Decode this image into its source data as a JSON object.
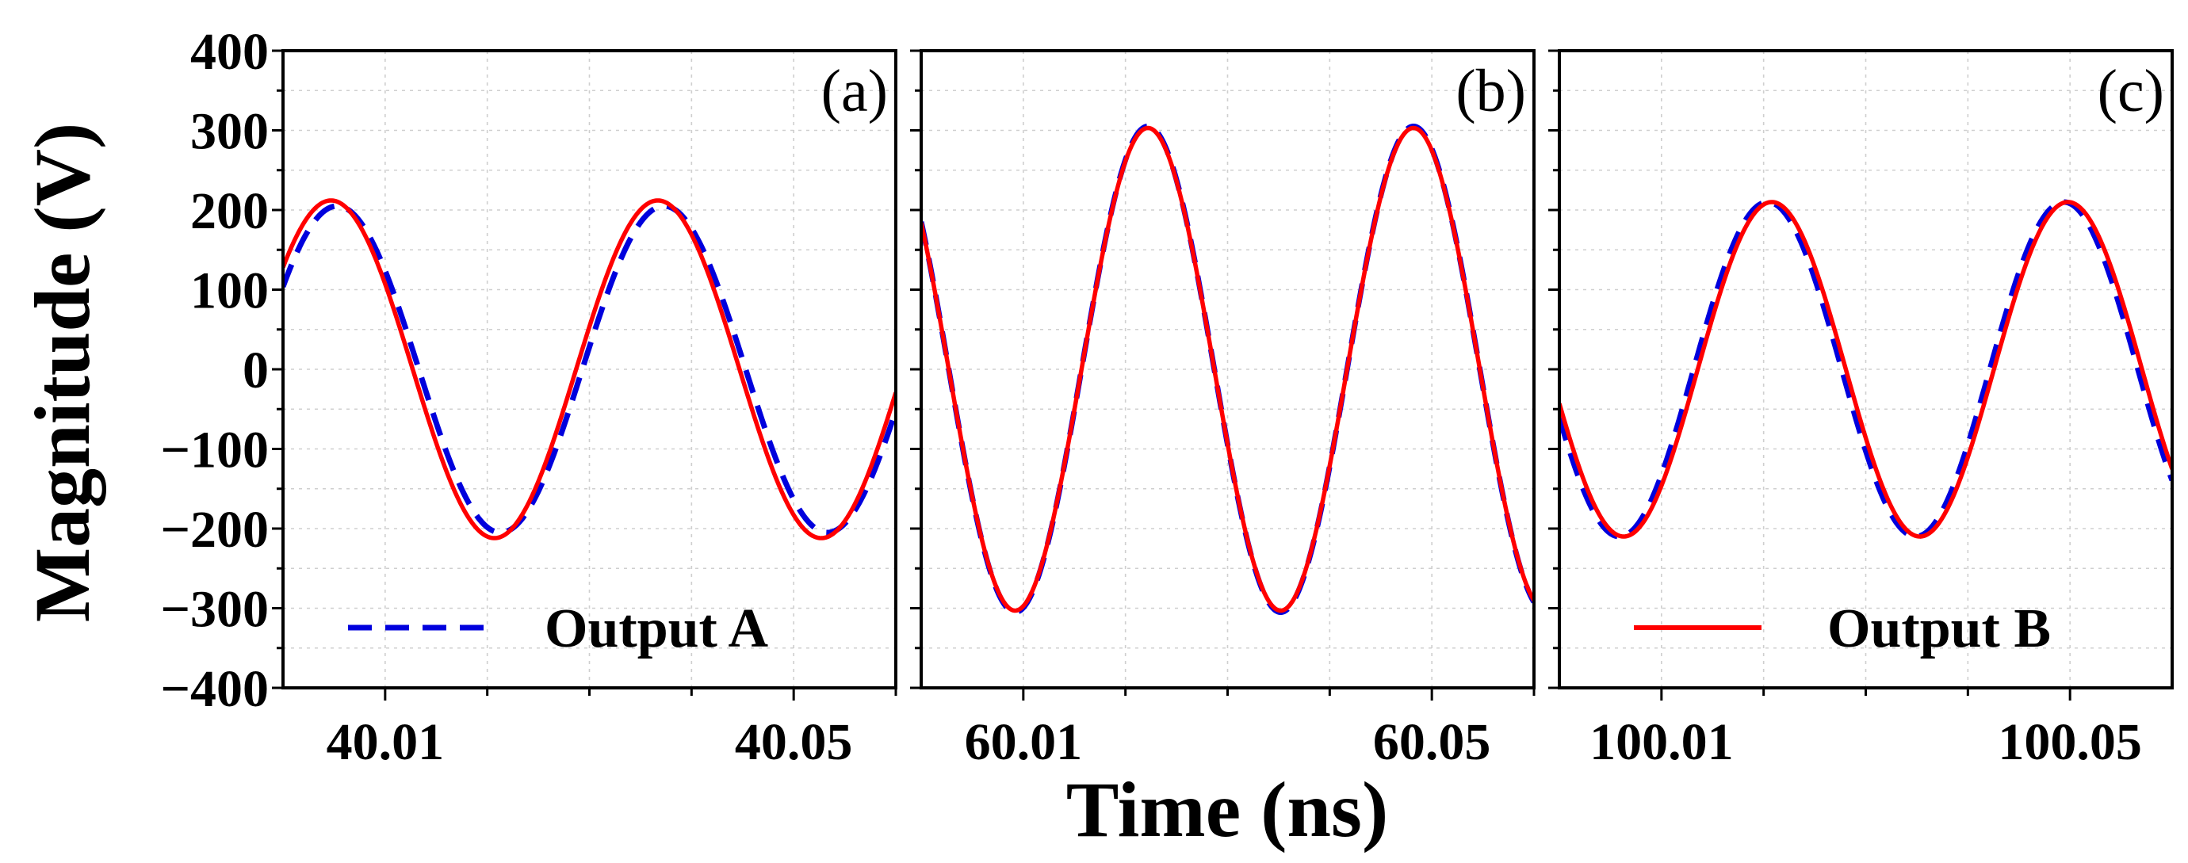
{
  "chart_data": {
    "type": "line",
    "ylabel": "Magnitude (V)",
    "xlabel": "Time (ns)",
    "ylim": [
      -400,
      400
    ],
    "yticks": [
      400,
      300,
      200,
      100,
      0,
      -100,
      -200,
      -300,
      -400
    ],
    "ytick_labels": [
      "400",
      "300",
      "200",
      "100",
      "0",
      "−100",
      "−200",
      "−300",
      "−400"
    ],
    "grid": true,
    "colors": {
      "output_a": "#0000dd",
      "output_b": "#ff0000"
    },
    "legend": [
      {
        "panel": 0,
        "label": "Output A",
        "style": "dashed",
        "position": "lower-left"
      },
      {
        "panel": 2,
        "label": "Output B",
        "style": "solid",
        "position": "lower-left"
      }
    ],
    "panels": [
      {
        "label": "(a)",
        "xlim": [
          40.0,
          40.06
        ],
        "xticks": [
          40.01,
          40.05
        ],
        "xtick_labels": [
          "40.01",
          "40.05"
        ],
        "series": [
          {
            "name": "Output A",
            "amplitude": 205,
            "period_ns": 0.032,
            "peak_time_ns": 40.0053
          },
          {
            "name": "Output B",
            "amplitude": 212,
            "period_ns": 0.032,
            "peak_time_ns": 40.0047
          }
        ]
      },
      {
        "label": "(b)",
        "xlim": [
          60.0,
          60.06
        ],
        "xticks": [
          60.01,
          60.05
        ],
        "xtick_labels": [
          "60.01",
          "60.05"
        ],
        "series": [
          {
            "name": "Output A",
            "amplitude": 305,
            "period_ns": 0.026,
            "peak_time_ns": 60.0222
          },
          {
            "name": "Output B",
            "amplitude": 303,
            "period_ns": 0.026,
            "peak_time_ns": 60.0222
          }
        ]
      },
      {
        "label": "(c)",
        "xlim": [
          100.0,
          100.06
        ],
        "xticks": [
          100.01,
          100.05
        ],
        "xtick_labels": [
          "100.01",
          "100.05"
        ],
        "series": [
          {
            "name": "Output A",
            "amplitude": 210,
            "period_ns": 0.029,
            "peak_time_ns": 100.0204
          },
          {
            "name": "Output B",
            "amplitude": 210,
            "period_ns": 0.029,
            "peak_time_ns": 100.0208
          }
        ]
      }
    ]
  }
}
